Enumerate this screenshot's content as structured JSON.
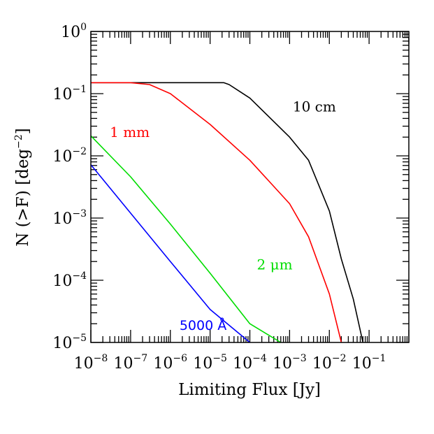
{
  "chart_data": {
    "type": "line",
    "xlabel": "Limiting Flux [Jy]",
    "ylabel": "N (>F) [deg",
    "ylabel_sup": "−2",
    "ylabel_close": "]",
    "x_scale": "log",
    "y_scale": "log",
    "xlim": [
      1e-08,
      1
    ],
    "ylim": [
      1e-05,
      1
    ],
    "grid": false,
    "legend": "none",
    "x_ticks": [
      {
        "base": "10",
        "exp": "−8"
      },
      {
        "base": "10",
        "exp": "−7"
      },
      {
        "base": "10",
        "exp": "−6"
      },
      {
        "base": "10",
        "exp": "−5"
      },
      {
        "base": "10",
        "exp": "−4"
      },
      {
        "base": "10",
        "exp": "−3"
      },
      {
        "base": "10",
        "exp": "−2"
      },
      {
        "base": "10",
        "exp": "−1"
      }
    ],
    "y_ticks": [
      {
        "base": "10",
        "exp": "0"
      },
      {
        "base": "10",
        "exp": "−1"
      },
      {
        "base": "10",
        "exp": "−2"
      },
      {
        "base": "10",
        "exp": "−3"
      },
      {
        "base": "10",
        "exp": "−4"
      },
      {
        "base": "10",
        "exp": "−5"
      }
    ],
    "series": [
      {
        "name": "10 cm",
        "color": "#000000",
        "points": [
          [
            1e-08,
            0.15
          ],
          [
            1e-06,
            0.15
          ],
          [
            1e-05,
            0.15
          ],
          [
            2.2e-05,
            0.15
          ],
          [
            3e-05,
            0.14
          ],
          [
            0.0001,
            0.085
          ],
          [
            0.001,
            0.02
          ],
          [
            0.003,
            0.0085
          ],
          [
            0.01,
            0.0013
          ],
          [
            0.02,
            0.00022
          ],
          [
            0.04,
            5e-05
          ],
          [
            0.07,
            1e-05
          ]
        ]
      },
      {
        "name": "1 mm",
        "color": "#ff0000",
        "points": [
          [
            1e-08,
            0.15
          ],
          [
            1e-07,
            0.15
          ],
          [
            3e-07,
            0.14
          ],
          [
            1e-06,
            0.1
          ],
          [
            1e-05,
            0.032
          ],
          [
            0.0001,
            0.0085
          ],
          [
            0.001,
            0.0017
          ],
          [
            0.003,
            0.0005
          ],
          [
            0.01,
            6e-05
          ],
          [
            0.02,
            1e-05
          ]
        ]
      },
      {
        "name": "2 μm",
        "color": "#00dd00",
        "points": [
          [
            1e-08,
            0.021
          ],
          [
            1e-07,
            0.0046
          ],
          [
            1e-06,
            0.0008
          ],
          [
            1e-05,
            0.00013
          ],
          [
            0.0001,
            2e-05
          ],
          [
            0.0006,
            1e-05
          ]
        ]
      },
      {
        "name": "5000 Å",
        "color": "#0000ff",
        "points": [
          [
            1e-08,
            0.0072
          ],
          [
            1e-07,
            0.0012
          ],
          [
            1e-06,
            0.0002
          ],
          [
            1e-05,
            3.4e-05
          ],
          [
            0.0001,
            1e-05
          ]
        ]
      }
    ],
    "annotations": [
      {
        "text": "10 cm",
        "color": "#000000",
        "at": [
          0.0012,
          0.052
        ]
      },
      {
        "text": "1 mm",
        "color": "#ff0000",
        "at": [
          3e-08,
          0.02
        ]
      },
      {
        "text": "2 μm",
        "color": "#00dd00",
        "at": [
          0.00015,
          0.00015
        ]
      },
      {
        "text": "5000 Å",
        "color": "#0000ff",
        "at": [
          1.7e-06,
          1.6e-05
        ]
      }
    ]
  }
}
